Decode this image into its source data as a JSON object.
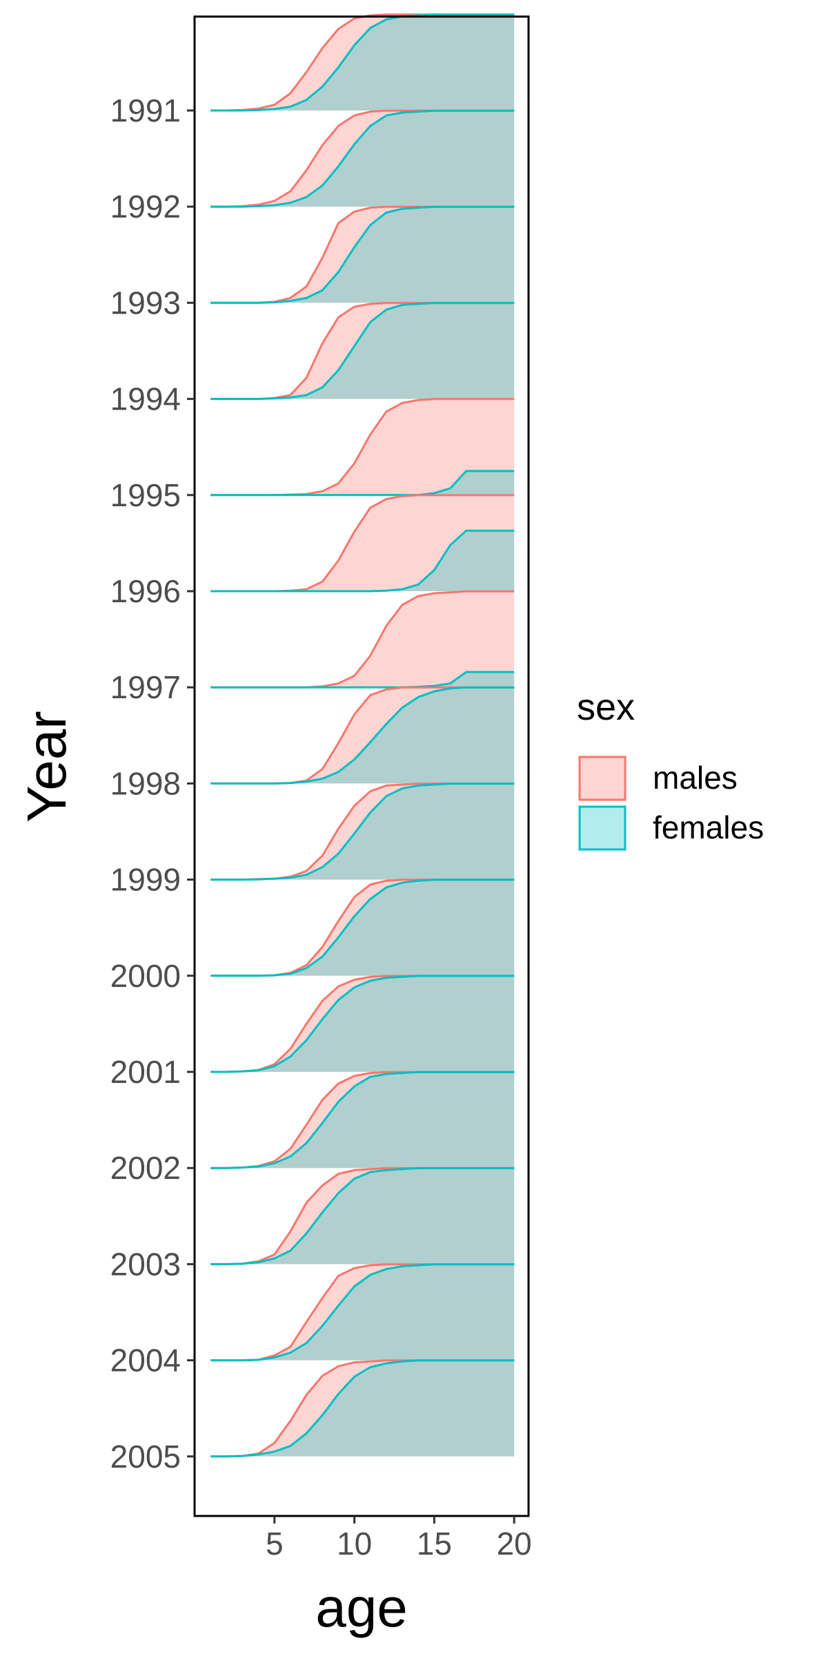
{
  "chart_data": {
    "type": "area",
    "subtype": "ridgeline",
    "title": "",
    "xlabel": "age",
    "ylabel": "Year",
    "xlim": [
      0,
      20.9
    ],
    "xticks": [
      5,
      10,
      15,
      20
    ],
    "years": [
      "1991",
      "1992",
      "1993",
      "1994",
      "1995",
      "1996",
      "1997",
      "1998",
      "1999",
      "2000",
      "2001",
      "2002",
      "2003",
      "2004",
      "2005"
    ],
    "ridge_height": 1.0,
    "ages": [
      1,
      2,
      3,
      4,
      5,
      6,
      7,
      8,
      9,
      10,
      11,
      12,
      13,
      14,
      15,
      16,
      17,
      18,
      19,
      20
    ],
    "legend": {
      "title": "sex",
      "position": "right",
      "entries": [
        {
          "key": "males",
          "label": "males",
          "fill": "#F8766D",
          "line": "#F8766D"
        },
        {
          "key": "females",
          "label": "females",
          "fill": "#00BFC4",
          "line": "#00BFC4"
        }
      ]
    },
    "series": [
      {
        "year": "1991",
        "males": [
          0,
          0,
          0.005,
          0.02,
          0.06,
          0.18,
          0.4,
          0.65,
          0.85,
          0.96,
          0.99,
          1,
          1,
          1,
          1,
          1,
          1,
          1,
          1,
          1
        ],
        "females": [
          0,
          0,
          0,
          0.005,
          0.015,
          0.04,
          0.11,
          0.25,
          0.45,
          0.68,
          0.86,
          0.95,
          0.98,
          0.99,
          1,
          1,
          1,
          1,
          1,
          1
        ]
      },
      {
        "year": "1992",
        "males": [
          0,
          0,
          0.005,
          0.02,
          0.06,
          0.16,
          0.38,
          0.64,
          0.84,
          0.95,
          0.99,
          1,
          1,
          1,
          1,
          1,
          1,
          1,
          1,
          1
        ],
        "females": [
          0,
          0,
          0,
          0.005,
          0.015,
          0.04,
          0.1,
          0.22,
          0.42,
          0.65,
          0.84,
          0.95,
          0.98,
          0.99,
          1,
          1,
          1,
          1,
          1,
          1
        ]
      },
      {
        "year": "1993",
        "males": [
          0,
          0,
          0,
          0,
          0.01,
          0.05,
          0.17,
          0.47,
          0.83,
          0.95,
          0.99,
          1,
          1,
          1,
          1,
          1,
          1,
          1,
          1,
          1
        ],
        "females": [
          0,
          0,
          0,
          0,
          0.005,
          0.02,
          0.05,
          0.13,
          0.32,
          0.58,
          0.81,
          0.94,
          0.98,
          0.99,
          1,
          1,
          1,
          1,
          1,
          1
        ]
      },
      {
        "year": "1994",
        "males": [
          0,
          0,
          0,
          0,
          0.01,
          0.04,
          0.22,
          0.58,
          0.85,
          0.96,
          0.99,
          1,
          1,
          1,
          1,
          1,
          1,
          1,
          1,
          1
        ],
        "females": [
          0,
          0,
          0,
          0,
          0.005,
          0.015,
          0.04,
          0.12,
          0.3,
          0.55,
          0.8,
          0.93,
          0.98,
          0.99,
          1,
          1,
          1,
          1,
          1,
          1
        ]
      },
      {
        "year": "1995",
        "males": [
          0,
          0,
          0,
          0,
          0,
          0.005,
          0.01,
          0.04,
          0.12,
          0.33,
          0.63,
          0.87,
          0.96,
          0.99,
          1,
          1,
          1,
          1,
          1,
          1
        ],
        "females": [
          0,
          0,
          0,
          0,
          0,
          0,
          0,
          0,
          0,
          0,
          0,
          0,
          0,
          0,
          0.02,
          0.07,
          0.25,
          0.25,
          0.25,
          0.25
        ]
      },
      {
        "year": "1996",
        "males": [
          0,
          0,
          0,
          0,
          0,
          0.005,
          0.02,
          0.1,
          0.32,
          0.62,
          0.87,
          0.96,
          0.99,
          1,
          1,
          1,
          1,
          1,
          1,
          1
        ],
        "females": [
          0,
          0,
          0,
          0,
          0,
          0,
          0,
          0,
          0,
          0,
          0,
          0.005,
          0.02,
          0.07,
          0.22,
          0.48,
          0.63,
          0.63,
          0.63,
          0.63
        ]
      },
      {
        "year": "1997",
        "males": [
          0,
          0,
          0,
          0,
          0,
          0,
          0,
          0.01,
          0.04,
          0.12,
          0.33,
          0.64,
          0.86,
          0.95,
          0.98,
          0.99,
          1,
          1,
          1,
          1
        ],
        "females": [
          0,
          0,
          0,
          0,
          0,
          0,
          0,
          0,
          0,
          0,
          0,
          0,
          0,
          0.005,
          0.015,
          0.04,
          0.16,
          0.16,
          0.16,
          0.16
        ]
      },
      {
        "year": "1998",
        "males": [
          0,
          0,
          0,
          0,
          0,
          0.005,
          0.03,
          0.15,
          0.42,
          0.72,
          0.92,
          0.98,
          1,
          1,
          1,
          1,
          1,
          1,
          1,
          1
        ],
        "females": [
          0,
          0,
          0,
          0,
          0,
          0.005,
          0.02,
          0.05,
          0.12,
          0.25,
          0.43,
          0.62,
          0.79,
          0.9,
          0.96,
          0.99,
          1,
          1,
          1,
          1
        ]
      },
      {
        "year": "1999",
        "males": [
          0,
          0,
          0,
          0.005,
          0.01,
          0.03,
          0.09,
          0.25,
          0.53,
          0.77,
          0.92,
          0.98,
          0.99,
          1,
          1,
          1,
          1,
          1,
          1,
          1
        ],
        "females": [
          0,
          0,
          0,
          0.003,
          0.01,
          0.02,
          0.05,
          0.13,
          0.27,
          0.48,
          0.7,
          0.87,
          0.95,
          0.98,
          0.99,
          1,
          1,
          1,
          1,
          1
        ]
      },
      {
        "year": "2000",
        "males": [
          0,
          0,
          0,
          0,
          0.005,
          0.03,
          0.11,
          0.3,
          0.57,
          0.82,
          0.95,
          0.99,
          1,
          1,
          1,
          1,
          1,
          1,
          1,
          1
        ],
        "females": [
          0,
          0,
          0,
          0,
          0.005,
          0.02,
          0.08,
          0.2,
          0.4,
          0.62,
          0.8,
          0.92,
          0.97,
          0.99,
          1,
          1,
          1,
          1,
          1,
          1
        ]
      },
      {
        "year": "2001",
        "males": [
          0,
          0,
          0.005,
          0.02,
          0.08,
          0.24,
          0.5,
          0.74,
          0.89,
          0.96,
          0.99,
          1,
          1,
          1,
          1,
          1,
          1,
          1,
          1,
          1
        ],
        "females": [
          0,
          0,
          0.005,
          0.015,
          0.06,
          0.16,
          0.33,
          0.55,
          0.75,
          0.88,
          0.95,
          0.98,
          0.99,
          1,
          1,
          1,
          1,
          1,
          1,
          1
        ]
      },
      {
        "year": "2002",
        "males": [
          0,
          0,
          0.005,
          0.02,
          0.07,
          0.2,
          0.45,
          0.71,
          0.88,
          0.96,
          0.99,
          1,
          1,
          1,
          1,
          1,
          1,
          1,
          1,
          1
        ],
        "females": [
          0,
          0,
          0.005,
          0.015,
          0.05,
          0.12,
          0.26,
          0.47,
          0.69,
          0.85,
          0.95,
          0.98,
          0.99,
          1,
          1,
          1,
          1,
          1,
          1,
          1
        ]
      },
      {
        "year": "2003",
        "males": [
          0,
          0,
          0.005,
          0.03,
          0.1,
          0.34,
          0.64,
          0.82,
          0.94,
          0.98,
          0.99,
          1,
          1,
          1,
          1,
          1,
          1,
          1,
          1,
          1
        ],
        "females": [
          0,
          0,
          0.005,
          0.02,
          0.06,
          0.14,
          0.32,
          0.54,
          0.74,
          0.89,
          0.96,
          0.98,
          0.99,
          1,
          1,
          1,
          1,
          1,
          1,
          1
        ]
      },
      {
        "year": "2004",
        "males": [
          0,
          0,
          0,
          0.005,
          0.05,
          0.14,
          0.4,
          0.65,
          0.88,
          0.96,
          0.99,
          1,
          1,
          1,
          1,
          1,
          1,
          1,
          1,
          1
        ],
        "females": [
          0,
          0,
          0,
          0.005,
          0.03,
          0.08,
          0.18,
          0.36,
          0.57,
          0.77,
          0.89,
          0.95,
          0.98,
          0.99,
          1,
          1,
          1,
          1,
          1,
          1
        ]
      },
      {
        "year": "2005",
        "males": [
          0,
          0,
          0.005,
          0.03,
          0.14,
          0.37,
          0.64,
          0.84,
          0.94,
          0.98,
          0.99,
          1,
          1,
          1,
          1,
          1,
          1,
          1,
          1,
          1
        ],
        "females": [
          0,
          0,
          0.005,
          0.02,
          0.05,
          0.11,
          0.24,
          0.43,
          0.65,
          0.83,
          0.93,
          0.97,
          0.99,
          1,
          1,
          1,
          1,
          1,
          1,
          1
        ]
      }
    ]
  }
}
